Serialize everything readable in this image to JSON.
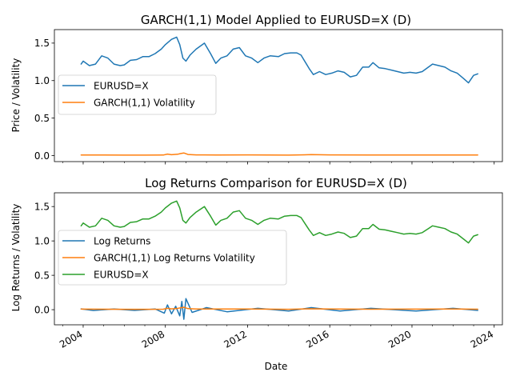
{
  "colors": {
    "blue": "#1f77b4",
    "orange": "#ff7f0e",
    "green": "#2ca02c"
  },
  "chart_data": [
    {
      "type": "line",
      "title": "GARCH(1,1) Model Applied to EURUSD=X (D)",
      "xlabel": "",
      "ylabel": "Price / Volatility",
      "xlim": [
        2002.6,
        2024.4
      ],
      "ylim": [
        -0.08,
        1.68
      ],
      "yticks": [
        0.0,
        0.5,
        1.0,
        1.5
      ],
      "ytick_labels": [
        "0.0",
        "0.5",
        "1.0",
        "1.5"
      ],
      "grid": false,
      "legend": "center-left",
      "series": [
        {
          "name": "EURUSD=X",
          "color": "#1f77b4",
          "x": [
            2003.9,
            2004.0,
            2004.3,
            2004.6,
            2004.9,
            2005.2,
            2005.5,
            2005.8,
            2006.0,
            2006.3,
            2006.6,
            2006.9,
            2007.2,
            2007.5,
            2007.8,
            2008.0,
            2008.3,
            2008.55,
            2008.7,
            2008.85,
            2009.0,
            2009.2,
            2009.5,
            2009.9,
            2010.2,
            2010.45,
            2010.7,
            2011.0,
            2011.3,
            2011.6,
            2011.9,
            2012.2,
            2012.5,
            2012.8,
            2013.1,
            2013.5,
            2013.8,
            2014.1,
            2014.4,
            2014.6,
            2014.8,
            2015.0,
            2015.2,
            2015.5,
            2015.8,
            2016.1,
            2016.4,
            2016.7,
            2017.0,
            2017.3,
            2017.6,
            2017.9,
            2018.1,
            2018.4,
            2018.7,
            2019.0,
            2019.3,
            2019.6,
            2019.9,
            2020.2,
            2020.5,
            2020.8,
            2021.0,
            2021.3,
            2021.6,
            2021.9,
            2022.2,
            2022.5,
            2022.75,
            2023.0,
            2023.2
          ],
          "y": [
            1.22,
            1.26,
            1.2,
            1.22,
            1.33,
            1.3,
            1.22,
            1.2,
            1.21,
            1.27,
            1.28,
            1.32,
            1.32,
            1.36,
            1.42,
            1.48,
            1.55,
            1.58,
            1.48,
            1.3,
            1.26,
            1.34,
            1.42,
            1.5,
            1.36,
            1.23,
            1.3,
            1.33,
            1.42,
            1.44,
            1.33,
            1.3,
            1.24,
            1.3,
            1.33,
            1.32,
            1.36,
            1.37,
            1.37,
            1.34,
            1.25,
            1.16,
            1.08,
            1.12,
            1.08,
            1.1,
            1.13,
            1.11,
            1.05,
            1.07,
            1.18,
            1.18,
            1.24,
            1.17,
            1.16,
            1.14,
            1.12,
            1.1,
            1.11,
            1.1,
            1.12,
            1.18,
            1.22,
            1.2,
            1.18,
            1.13,
            1.1,
            1.03,
            0.97,
            1.07,
            1.09
          ]
        },
        {
          "name": "GARCH(1,1) Volatility",
          "color": "#ff7f0e",
          "x": [
            2003.9,
            2005.0,
            2006.0,
            2007.0,
            2007.9,
            2008.1,
            2008.3,
            2008.6,
            2008.75,
            2008.9,
            2009.1,
            2009.5,
            2010.5,
            2012.0,
            2014.0,
            2015.1,
            2016.0,
            2018.0,
            2020.3,
            2022.0,
            2023.2
          ],
          "y": [
            0.008,
            0.007,
            0.006,
            0.006,
            0.007,
            0.02,
            0.012,
            0.018,
            0.028,
            0.035,
            0.015,
            0.01,
            0.009,
            0.01,
            0.006,
            0.013,
            0.01,
            0.007,
            0.008,
            0.009,
            0.007
          ]
        }
      ]
    },
    {
      "type": "line",
      "title": "Log Returns Comparison for EURUSD=X (D)",
      "xlabel": "Date",
      "ylabel": "Log Returns / Volatility",
      "xlim": [
        2002.6,
        2024.4
      ],
      "ylim": [
        -0.22,
        1.7
      ],
      "yticks": [
        0.0,
        0.5,
        1.0,
        1.5
      ],
      "ytick_labels": [
        "0.0",
        "0.5",
        "1.0",
        "1.5"
      ],
      "xticks": [
        2004,
        2008,
        2012,
        2016,
        2020,
        2024
      ],
      "xtick_labels": [
        "2004",
        "2008",
        "2012",
        "2016",
        "2020",
        "2024"
      ],
      "grid": false,
      "legend": "center-left",
      "series": [
        {
          "name": "Log Returns",
          "color": "#1f77b4",
          "x": [
            2003.9,
            2004.5,
            2005.5,
            2006.5,
            2007.5,
            2007.95,
            2008.1,
            2008.3,
            2008.5,
            2008.7,
            2008.8,
            2008.9,
            2009.0,
            2009.3,
            2010.0,
            2011.0,
            2012.5,
            2014.0,
            2015.1,
            2016.5,
            2018.0,
            2020.2,
            2022.0,
            2023.2
          ],
          "y": [
            0.012,
            -0.012,
            0.01,
            -0.01,
            0.01,
            -0.05,
            0.07,
            -0.06,
            0.05,
            -0.09,
            0.12,
            -0.14,
            0.16,
            -0.04,
            0.03,
            -0.03,
            0.02,
            -0.02,
            0.03,
            -0.02,
            0.02,
            -0.02,
            0.02,
            -0.01
          ]
        },
        {
          "name": "GARCH(1,1) Log Returns Volatility",
          "color": "#ff7f0e",
          "x": [
            2003.9,
            2005.0,
            2006.0,
            2007.0,
            2007.9,
            2008.1,
            2008.3,
            2008.6,
            2008.75,
            2008.9,
            2009.1,
            2009.5,
            2010.5,
            2012.0,
            2014.0,
            2015.1,
            2016.0,
            2018.0,
            2020.3,
            2022.0,
            2023.2
          ],
          "y": [
            0.008,
            0.007,
            0.006,
            0.006,
            0.007,
            0.02,
            0.012,
            0.018,
            0.028,
            0.035,
            0.015,
            0.01,
            0.009,
            0.01,
            0.006,
            0.013,
            0.01,
            0.007,
            0.008,
            0.009,
            0.007
          ]
        },
        {
          "name": "EURUSD=X",
          "color": "#2ca02c",
          "x": [
            2003.9,
            2004.0,
            2004.3,
            2004.6,
            2004.9,
            2005.2,
            2005.5,
            2005.8,
            2006.0,
            2006.3,
            2006.6,
            2006.9,
            2007.2,
            2007.5,
            2007.8,
            2008.0,
            2008.3,
            2008.55,
            2008.7,
            2008.85,
            2009.0,
            2009.2,
            2009.5,
            2009.9,
            2010.2,
            2010.45,
            2010.7,
            2011.0,
            2011.3,
            2011.6,
            2011.9,
            2012.2,
            2012.5,
            2012.8,
            2013.1,
            2013.5,
            2013.8,
            2014.1,
            2014.4,
            2014.6,
            2014.8,
            2015.0,
            2015.2,
            2015.5,
            2015.8,
            2016.1,
            2016.4,
            2016.7,
            2017.0,
            2017.3,
            2017.6,
            2017.9,
            2018.1,
            2018.4,
            2018.7,
            2019.0,
            2019.3,
            2019.6,
            2019.9,
            2020.2,
            2020.5,
            2020.8,
            2021.0,
            2021.3,
            2021.6,
            2021.9,
            2022.2,
            2022.5,
            2022.75,
            2023.0,
            2023.2
          ],
          "y": [
            1.22,
            1.26,
            1.2,
            1.22,
            1.33,
            1.3,
            1.22,
            1.2,
            1.21,
            1.27,
            1.28,
            1.32,
            1.32,
            1.36,
            1.42,
            1.48,
            1.55,
            1.58,
            1.48,
            1.3,
            1.26,
            1.34,
            1.42,
            1.5,
            1.36,
            1.23,
            1.3,
            1.33,
            1.42,
            1.44,
            1.33,
            1.3,
            1.24,
            1.3,
            1.33,
            1.32,
            1.36,
            1.37,
            1.37,
            1.34,
            1.25,
            1.16,
            1.08,
            1.12,
            1.08,
            1.1,
            1.13,
            1.11,
            1.05,
            1.07,
            1.18,
            1.18,
            1.24,
            1.17,
            1.16,
            1.14,
            1.12,
            1.1,
            1.11,
            1.1,
            1.12,
            1.18,
            1.22,
            1.2,
            1.18,
            1.13,
            1.1,
            1.03,
            0.97,
            1.07,
            1.09
          ]
        }
      ]
    }
  ]
}
